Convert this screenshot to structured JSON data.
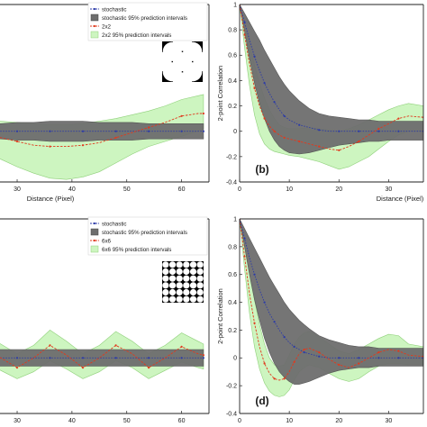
{
  "chart_data": [
    {
      "id": "a",
      "type": "line",
      "panel_label": "",
      "xlabel": "Distance (Pixel)",
      "ylabel": "",
      "x_ticks": [
        30,
        40,
        50,
        60
      ],
      "legend": {
        "placement": "top",
        "entries": [
          "stochastic",
          "stochastic 95% prediction intervals",
          "2x2",
          "2x2 95% prediction intervals"
        ]
      },
      "pattern": "2x2",
      "x": [
        21,
        24,
        27,
        30,
        33,
        36,
        39,
        42,
        45,
        48,
        51,
        54,
        57,
        60,
        63,
        64
      ],
      "series": [
        {
          "name": "stochastic",
          "role": "line",
          "color": "#2b3aa8",
          "values": [
            0.0,
            0.0,
            0.0,
            0.0,
            0.0,
            0.0,
            0.0,
            0.0,
            0.0,
            0.0,
            0.0,
            0.0,
            0.0,
            0.0,
            0.0,
            0.0
          ]
        },
        {
          "name": "stochastic 95% prediction intervals",
          "role": "band",
          "color": "#6e6e6e",
          "lower": [
            -0.05,
            -0.06,
            -0.06,
            -0.07,
            -0.07,
            -0.08,
            -0.08,
            -0.08,
            -0.07,
            -0.07,
            -0.07,
            -0.06,
            -0.06,
            -0.06,
            -0.06,
            -0.06
          ],
          "upper": [
            0.05,
            0.06,
            0.06,
            0.07,
            0.07,
            0.08,
            0.08,
            0.08,
            0.07,
            0.07,
            0.07,
            0.06,
            0.06,
            0.06,
            0.06,
            0.06
          ]
        },
        {
          "name": "2x2",
          "role": "line",
          "color": "#e03a1e",
          "values": [
            -0.02,
            -0.03,
            -0.05,
            -0.08,
            -0.11,
            -0.12,
            -0.12,
            -0.11,
            -0.09,
            -0.05,
            -0.01,
            0.03,
            0.07,
            0.12,
            0.14,
            0.14
          ]
        },
        {
          "name": "2x2 95% prediction intervals",
          "role": "band",
          "color": "#cdf5c0",
          "lower": [
            -0.12,
            -0.17,
            -0.22,
            -0.28,
            -0.33,
            -0.37,
            -0.38,
            -0.36,
            -0.32,
            -0.25,
            -0.18,
            -0.12,
            -0.08,
            -0.04,
            0.0,
            0.02
          ],
          "upper": [
            0.07,
            0.08,
            0.08,
            0.07,
            0.06,
            0.05,
            0.05,
            0.06,
            0.08,
            0.1,
            0.13,
            0.16,
            0.2,
            0.25,
            0.28,
            0.29
          ]
        }
      ]
    },
    {
      "id": "b",
      "type": "line",
      "panel_label": "(b)",
      "xlabel": "Distance (Pixel)",
      "ylabel": "2-point Correlation",
      "xlim": [
        0,
        37
      ],
      "ylim": [
        -0.4,
        1
      ],
      "x_ticks": [
        0,
        10,
        20,
        30
      ],
      "y_ticks": [
        1,
        0.8,
        0.6,
        0.4,
        0.2,
        0,
        -0.2,
        -0.4
      ],
      "x": [
        0,
        1,
        2,
        3,
        4,
        5,
        6,
        7,
        8,
        9,
        10,
        12,
        14,
        16,
        18,
        20,
        22,
        24,
        26,
        28,
        30,
        32,
        34,
        37
      ],
      "series": [
        {
          "name": "stochastic",
          "role": "line",
          "color": "#2b3aa8",
          "values": [
            1.0,
            0.86,
            0.72,
            0.59,
            0.48,
            0.38,
            0.3,
            0.23,
            0.17,
            0.12,
            0.09,
            0.05,
            0.03,
            0.01,
            0.0,
            0.0,
            0.0,
            0.0,
            0.0,
            0.0,
            0.0,
            0.0,
            0.0,
            0.0
          ]
        },
        {
          "name": "stochastic 95% prediction intervals",
          "role": "band",
          "color": "#6e6e6e",
          "lower": [
            1.0,
            0.79,
            0.57,
            0.38,
            0.22,
            0.1,
            0.0,
            -0.07,
            -0.12,
            -0.15,
            -0.17,
            -0.18,
            -0.17,
            -0.15,
            -0.13,
            -0.11,
            -0.1,
            -0.09,
            -0.08,
            -0.08,
            -0.07,
            -0.07,
            -0.07,
            -0.07
          ],
          "upper": [
            1.0,
            0.93,
            0.86,
            0.79,
            0.72,
            0.64,
            0.57,
            0.5,
            0.43,
            0.37,
            0.32,
            0.24,
            0.18,
            0.14,
            0.12,
            0.11,
            0.1,
            0.09,
            0.09,
            0.08,
            0.08,
            0.08,
            0.08,
            0.08
          ]
        },
        {
          "name": "2x2",
          "role": "line",
          "color": "#e03a1e",
          "values": [
            1.0,
            0.76,
            0.53,
            0.34,
            0.2,
            0.1,
            0.04,
            0.0,
            -0.03,
            -0.05,
            -0.06,
            -0.08,
            -0.1,
            -0.12,
            -0.14,
            -0.15,
            -0.12,
            -0.08,
            -0.03,
            0.02,
            0.06,
            0.1,
            0.12,
            0.11
          ]
        },
        {
          "name": "2x2 95% prediction intervals",
          "role": "band",
          "color": "#cdf5c0",
          "lower": [
            1.0,
            0.66,
            0.36,
            0.13,
            -0.02,
            -0.1,
            -0.14,
            -0.16,
            -0.17,
            -0.18,
            -0.19,
            -0.2,
            -0.22,
            -0.24,
            -0.27,
            -0.3,
            -0.28,
            -0.24,
            -0.2,
            -0.14,
            -0.08,
            -0.03,
            0.0,
            0.0
          ],
          "upper": [
            1.0,
            0.84,
            0.68,
            0.52,
            0.38,
            0.26,
            0.17,
            0.1,
            0.05,
            0.03,
            0.02,
            0.02,
            0.03,
            0.02,
            0.01,
            0.0,
            0.02,
            0.05,
            0.09,
            0.13,
            0.17,
            0.2,
            0.22,
            0.2
          ]
        }
      ]
    },
    {
      "id": "c",
      "type": "line",
      "panel_label": "",
      "xlabel": "Distance (Pixel)",
      "ylabel": "",
      "x_ticks": [
        30,
        40,
        50,
        60
      ],
      "legend": {
        "placement": "top",
        "entries": [
          "stochastic",
          "stochastic 95% prediction intervals",
          "6x6",
          "6x6 95% prediction intervals"
        ]
      },
      "pattern": "6x6",
      "x": [
        21,
        24,
        27,
        30,
        33,
        36,
        39,
        42,
        45,
        48,
        51,
        54,
        57,
        60,
        63,
        64
      ],
      "series": [
        {
          "name": "stochastic",
          "role": "line",
          "color": "#2b3aa8",
          "values": [
            0.0,
            0.0,
            0.0,
            0.0,
            0.0,
            0.0,
            0.0,
            0.0,
            0.0,
            0.0,
            0.0,
            0.0,
            0.0,
            0.0,
            0.0,
            0.0
          ]
        },
        {
          "name": "stochastic 95% prediction intervals",
          "role": "band",
          "color": "#6e6e6e",
          "lower": [
            -0.04,
            -0.05,
            -0.06,
            -0.06,
            -0.06,
            -0.06,
            -0.06,
            -0.06,
            -0.06,
            -0.06,
            -0.06,
            -0.06,
            -0.06,
            -0.06,
            -0.06,
            -0.06
          ],
          "upper": [
            0.04,
            0.05,
            0.06,
            0.06,
            0.06,
            0.06,
            0.06,
            0.06,
            0.06,
            0.06,
            0.06,
            0.06,
            0.06,
            0.06,
            0.06,
            0.06
          ]
        },
        {
          "name": "6x6",
          "role": "line",
          "color": "#e03a1e",
          "values": [
            0.05,
            0.08,
            0.0,
            -0.07,
            0.0,
            0.09,
            0.02,
            -0.07,
            0.0,
            0.09,
            0.03,
            -0.07,
            0.0,
            0.08,
            0.03,
            0.02
          ]
        },
        {
          "name": "6x6 95% prediction intervals",
          "role": "band",
          "color": "#cdf5c0",
          "lower": [
            -0.05,
            -0.02,
            -0.09,
            -0.15,
            -0.1,
            -0.02,
            -0.08,
            -0.15,
            -0.1,
            -0.02,
            -0.07,
            -0.15,
            -0.09,
            -0.03,
            -0.07,
            -0.08
          ],
          "upper": [
            0.13,
            0.17,
            0.1,
            0.03,
            0.09,
            0.2,
            0.12,
            0.03,
            0.09,
            0.19,
            0.12,
            0.03,
            0.09,
            0.18,
            0.12,
            0.1
          ]
        }
      ]
    },
    {
      "id": "d",
      "type": "line",
      "panel_label": "(d)",
      "xlabel": "Distance (Pixel)",
      "ylabel": "2-point Correlation",
      "xlim": [
        0,
        37
      ],
      "ylim": [
        -0.4,
        1
      ],
      "x_ticks": [
        0,
        10,
        20,
        30
      ],
      "y_ticks": [
        1,
        0.8,
        0.6,
        0.4,
        0.2,
        0,
        -0.2,
        -0.4
      ],
      "x": [
        0,
        1,
        2,
        3,
        4,
        5,
        6,
        7,
        8,
        9,
        10,
        11,
        12,
        13,
        14,
        16,
        18,
        20,
        22,
        24,
        26,
        28,
        30,
        32,
        34,
        37
      ],
      "series": [
        {
          "name": "stochastic",
          "role": "line",
          "color": "#2b3aa8",
          "values": [
            1.0,
            0.86,
            0.72,
            0.6,
            0.49,
            0.4,
            0.32,
            0.26,
            0.2,
            0.15,
            0.11,
            0.08,
            0.06,
            0.04,
            0.03,
            0.01,
            0.0,
            0.0,
            0.0,
            0.0,
            0.0,
            0.0,
            0.0,
            0.0,
            0.0,
            0.0
          ]
        },
        {
          "name": "stochastic 95% prediction intervals",
          "role": "band",
          "color": "#6e6e6e",
          "lower": [
            1.0,
            0.8,
            0.6,
            0.42,
            0.27,
            0.14,
            0.04,
            -0.04,
            -0.1,
            -0.14,
            -0.17,
            -0.19,
            -0.19,
            -0.18,
            -0.17,
            -0.14,
            -0.11,
            -0.09,
            -0.08,
            -0.07,
            -0.07,
            -0.06,
            -0.06,
            -0.06,
            -0.06,
            -0.06
          ],
          "upper": [
            1.0,
            0.93,
            0.86,
            0.79,
            0.72,
            0.65,
            0.58,
            0.52,
            0.46,
            0.4,
            0.35,
            0.31,
            0.27,
            0.24,
            0.21,
            0.16,
            0.13,
            0.11,
            0.09,
            0.08,
            0.08,
            0.07,
            0.07,
            0.07,
            0.07,
            0.07
          ]
        },
        {
          "name": "6x6",
          "role": "line",
          "color": "#e03a1e",
          "values": [
            1.0,
            0.73,
            0.46,
            0.25,
            0.08,
            -0.04,
            -0.11,
            -0.15,
            -0.16,
            -0.15,
            -0.1,
            -0.03,
            0.03,
            0.06,
            0.07,
            0.04,
            -0.01,
            -0.05,
            -0.07,
            -0.04,
            0.0,
            0.04,
            0.06,
            0.05,
            0.02,
            0.01
          ]
        },
        {
          "name": "6x6 95% prediction intervals",
          "role": "band",
          "color": "#cdf5c0",
          "lower": [
            1.0,
            0.64,
            0.32,
            0.08,
            -0.08,
            -0.18,
            -0.24,
            -0.27,
            -0.28,
            -0.27,
            -0.23,
            -0.16,
            -0.1,
            -0.07,
            -0.05,
            -0.07,
            -0.11,
            -0.15,
            -0.17,
            -0.15,
            -0.1,
            -0.06,
            -0.04,
            -0.04,
            -0.05,
            -0.05
          ],
          "upper": [
            1.0,
            0.82,
            0.6,
            0.42,
            0.24,
            0.1,
            0.0,
            -0.05,
            -0.06,
            -0.05,
            0.02,
            0.1,
            0.15,
            0.18,
            0.19,
            0.15,
            0.1,
            0.05,
            0.03,
            0.06,
            0.1,
            0.14,
            0.17,
            0.16,
            0.1,
            0.08
          ]
        }
      ]
    }
  ]
}
